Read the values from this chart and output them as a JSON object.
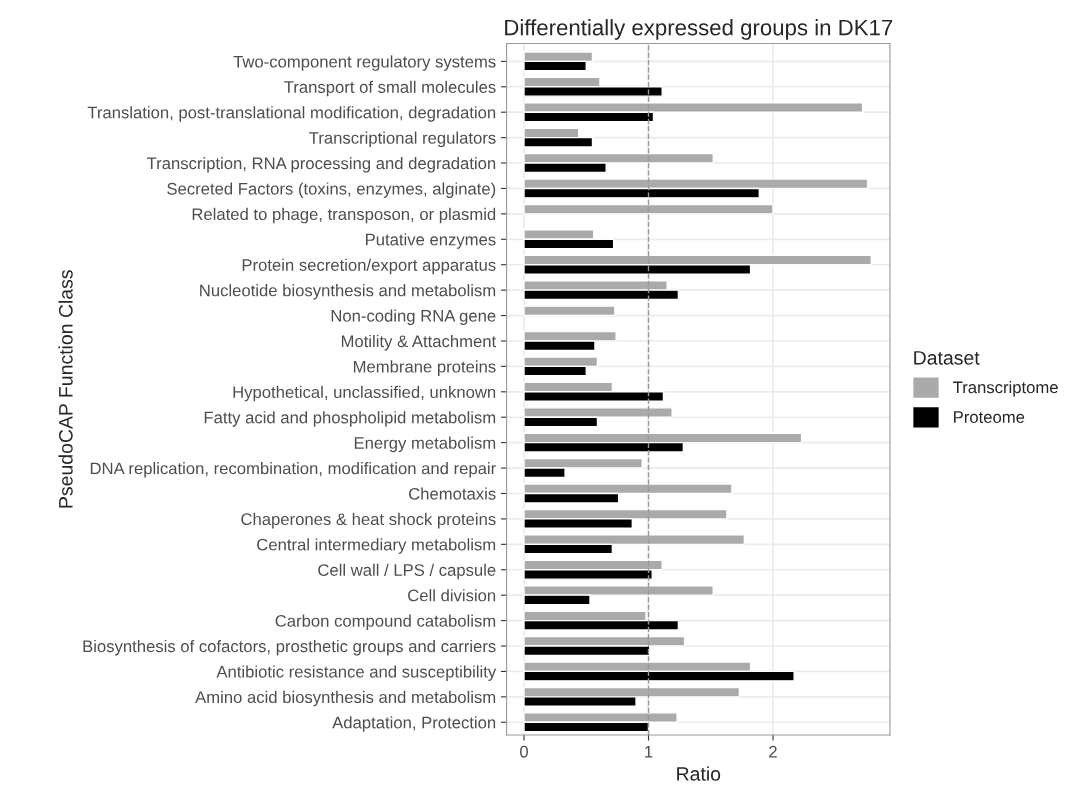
{
  "chart_data": {
    "type": "bar",
    "orientation": "horizontal",
    "title": "Differentially expressed groups in DK17",
    "xlabel": "Ratio",
    "ylabel": "PseudoCAP Function Class",
    "legend_title": "Dataset",
    "legend": "right",
    "grid": true,
    "categories": [
      "Two-component regulatory systems",
      "Transport of small molecules",
      "Translation, post-translational modification, degradation",
      "Transcriptional regulators",
      "Transcription, RNA processing and degradation",
      "Secreted Factors (toxins, enzymes, alginate)",
      "Related to phage, transposon, or plasmid",
      "Putative enzymes",
      "Protein secretion/export apparatus",
      "Nucleotide biosynthesis and metabolism",
      "Non-coding RNA gene",
      "Motility & Attachment",
      "Membrane proteins",
      "Hypothetical, unclassified, unknown",
      "Fatty acid and phospholipid metabolism",
      "Energy metabolism",
      "DNA replication, recombination, modification and repair",
      "Chemotaxis",
      "Chaperones & heat shock proteins",
      "Central intermediary metabolism",
      "Cell wall / LPS / capsule",
      "Cell division",
      "Carbon compound catabolism",
      "Biosynthesis of cofactors, prosthetic groups and carriers",
      "Antibiotic resistance and susceptibility",
      "Amino acid biosynthesis and metabolism",
      "Adaptation, Protection"
    ],
    "series": [
      {
        "name": "Transcriptome",
        "color": "#aaaaaa",
        "values": [
          0.55,
          0.61,
          2.72,
          0.44,
          1.52,
          2.76,
          2.0,
          0.56,
          2.79,
          1.15,
          0.73,
          0.74,
          0.59,
          0.71,
          1.19,
          2.23,
          0.95,
          1.67,
          1.63,
          1.77,
          1.11,
          1.52,
          0.98,
          1.29,
          1.82,
          1.73,
          1.23
        ]
      },
      {
        "name": "Proteome",
        "color": "#000000",
        "values": [
          0.5,
          1.11,
          1.04,
          0.55,
          0.66,
          1.89,
          null,
          0.72,
          1.82,
          1.24,
          null,
          0.57,
          0.5,
          1.12,
          0.59,
          1.28,
          0.33,
          0.76,
          0.87,
          0.71,
          1.03,
          0.53,
          1.24,
          1.01,
          2.17,
          0.9,
          1.0
        ]
      }
    ],
    "xlim": [
      -0.14,
      2.94
    ],
    "xticks": [
      0,
      1,
      2
    ],
    "ref_lines": [
      {
        "axis": "x",
        "value": 1,
        "color": "#999999",
        "line_style": "dashed"
      }
    ]
  }
}
